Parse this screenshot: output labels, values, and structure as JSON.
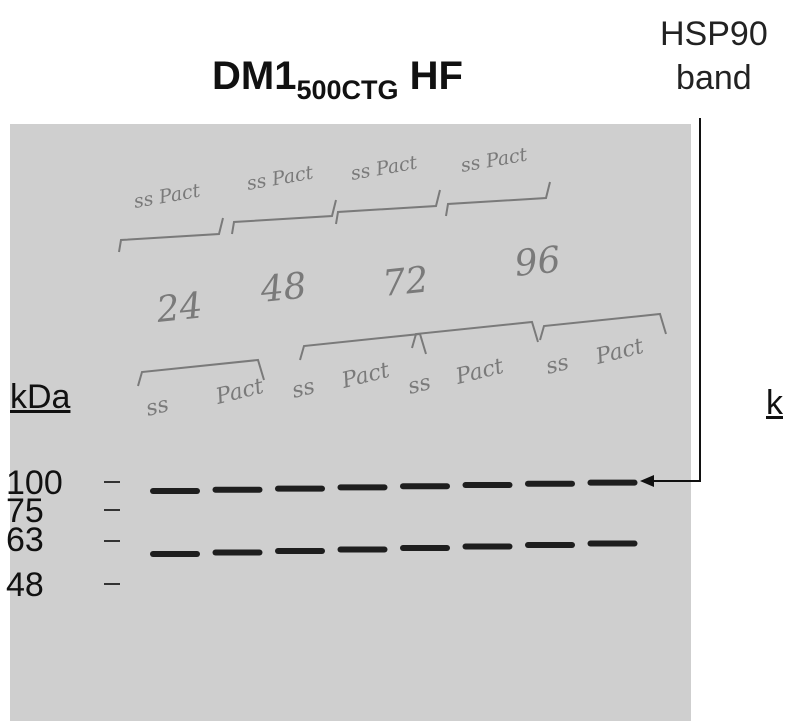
{
  "title": {
    "main": "DM1",
    "subscript": "500CTG",
    "suffix": " HF"
  },
  "annotation": {
    "line1": "HSP90",
    "line2": "band"
  },
  "axis": {
    "unit": "kDa",
    "unit_right_fragment": "k"
  },
  "markers": [
    "100",
    "75",
    "63",
    "48"
  ],
  "handwriting": {
    "top_labels": [
      "ss Pact",
      "ss Pact",
      "ss Pact",
      "ss Pact"
    ],
    "timepoints": [
      "24",
      "48",
      "72",
      "96"
    ],
    "lane_labels": [
      "ss",
      "Pact",
      "ss",
      "Pact",
      "ss",
      "Pact",
      "ss",
      "Pact"
    ]
  },
  "lanes": 8,
  "colors": {
    "membrane": "#cfcfcf",
    "band": "#1e1e1e",
    "ink": "#7a7a7a"
  }
}
